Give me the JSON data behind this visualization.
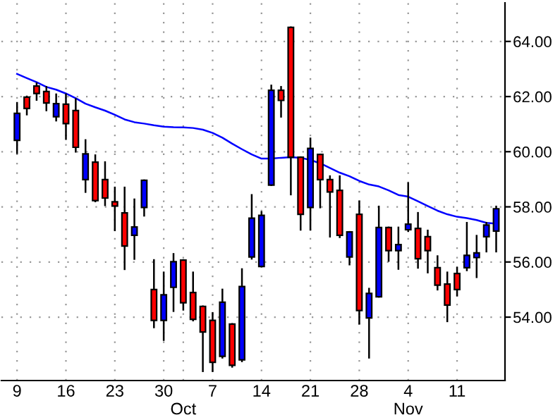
{
  "chart_data": {
    "type": "candlestick",
    "categories": [
      "9",
      null,
      null,
      null,
      null,
      "16",
      null,
      null,
      null,
      null,
      "23",
      null,
      null,
      null,
      null,
      "30",
      null,
      "\nOct",
      null,
      null,
      "7",
      null,
      null,
      null,
      null,
      "14",
      null,
      null,
      null,
      null,
      "21",
      null,
      null,
      null,
      null,
      "28",
      null,
      null,
      null,
      null,
      "4\nNov",
      null,
      null,
      null,
      null,
      "11",
      null,
      null,
      null,
      null
    ],
    "ohlc": [
      [
        60.41,
        61.77,
        59.95,
        61.39
      ],
      [
        61.98,
        62.0,
        61.35,
        61.57
      ],
      [
        62.38,
        62.48,
        61.88,
        62.11
      ],
      [
        62.18,
        62.35,
        61.5,
        61.77
      ],
      [
        61.27,
        62.08,
        61.13,
        61.74
      ],
      [
        61.72,
        62.08,
        60.46,
        61.02
      ],
      [
        61.49,
        61.91,
        60.0,
        60.16
      ],
      [
        58.99,
        60.42,
        58.54,
        59.92
      ],
      [
        59.62,
        59.87,
        58.2,
        58.23
      ],
      [
        58.99,
        59.62,
        58.06,
        58.32
      ],
      [
        58.18,
        58.7,
        57.15,
        58.03
      ],
      [
        57.78,
        58.7,
        55.74,
        56.58
      ],
      [
        56.97,
        58.27,
        56.11,
        57.27
      ],
      [
        57.98,
        58.96,
        57.68,
        58.96
      ],
      [
        55.0,
        56.07,
        53.63,
        53.88
      ],
      [
        53.88,
        55.62,
        53.17,
        54.81
      ],
      [
        55.08,
        56.29,
        54.22,
        56.01
      ],
      [
        56.07,
        56.07,
        54.27,
        54.52
      ],
      [
        54.89,
        55.62,
        53.88,
        53.92
      ],
      [
        54.39,
        54.39,
        52.04,
        53.46
      ],
      [
        53.88,
        54.15,
        52.04,
        52.36
      ],
      [
        52.58,
        55.0,
        52.53,
        54.54
      ],
      [
        53.75,
        53.75,
        52.2,
        52.25
      ],
      [
        52.45,
        55.74,
        52.4,
        55.11
      ],
      [
        56.18,
        58.43,
        56.12,
        57.59
      ],
      [
        55.84,
        57.81,
        55.84,
        57.69
      ],
      [
        58.79,
        62.4,
        58.79,
        62.23
      ],
      [
        62.23,
        62.35,
        61.27,
        61.86
      ],
      [
        64.51,
        64.51,
        58.45,
        59.8
      ],
      [
        59.8,
        59.8,
        57.17,
        57.73
      ],
      [
        57.98,
        60.48,
        57.17,
        60.12
      ],
      [
        59.9,
        59.9,
        57.98,
        58.99
      ],
      [
        58.99,
        59.11,
        56.92,
        58.54
      ],
      [
        58.6,
        59.11,
        56.9,
        56.97
      ],
      [
        56.18,
        57.09,
        55.91,
        57.09
      ],
      [
        57.73,
        58.2,
        53.76,
        54.24
      ],
      [
        53.97,
        55.03,
        52.53,
        54.86
      ],
      [
        54.74,
        58.01,
        54.74,
        57.25
      ],
      [
        57.25,
        57.25,
        56.04,
        56.41
      ],
      [
        56.41,
        57.25,
        55.75,
        56.63
      ],
      [
        57.17,
        58.86,
        57.12,
        57.37
      ],
      [
        57.22,
        57.78,
        55.79,
        56.12
      ],
      [
        56.92,
        57.14,
        55.62,
        56.41
      ],
      [
        55.79,
        56.21,
        55.0,
        55.16
      ],
      [
        55.2,
        55.62,
        53.85,
        54.44
      ],
      [
        55.58,
        55.79,
        54.78,
        55.0
      ],
      [
        55.79,
        57.42,
        55.7,
        56.24
      ],
      [
        56.16,
        56.95,
        55.45,
        56.33
      ],
      [
        56.92,
        57.42,
        56.38,
        57.34
      ],
      [
        57.12,
        58.01,
        56.38,
        57.93
      ]
    ],
    "colors": [
      "#0000ff",
      "#ff0000",
      "#ff0000",
      "#ff0000",
      "#0000ff",
      "#ff0000",
      "#ff0000",
      "#0000ff",
      "#ff0000",
      "#ff0000",
      "#ff0000",
      "#ff0000",
      "#0000ff",
      "#0000ff",
      "#ff0000",
      "#0000ff",
      "#0000ff",
      "#ff0000",
      "#ff0000",
      "#ff0000",
      "#ff0000",
      "#0000ff",
      "#ff0000",
      "#0000ff",
      "#0000ff",
      "#0000ff",
      "#0000ff",
      "#ff0000",
      "#ff0000",
      "#ff0000",
      "#0000ff",
      "#ff0000",
      "#ff0000",
      "#ff0000",
      "#0000ff",
      "#ff0000",
      "#0000ff",
      "#0000ff",
      "#ff0000",
      "#0000ff",
      "#0000ff",
      "#ff0000",
      "#ff0000",
      "#ff0000",
      "#ff0000",
      "#ff0000",
      "#0000ff",
      "#0000ff",
      "#0000ff",
      "#0000ff"
    ],
    "series": [
      {
        "type": "line",
        "color": "#0000ff",
        "values": [
          62.82,
          62.67,
          62.52,
          62.35,
          62.25,
          62.11,
          61.94,
          61.74,
          61.61,
          61.49,
          61.34,
          61.17,
          61.07,
          61.02,
          60.96,
          60.91,
          60.89,
          60.88,
          60.86,
          60.8,
          60.68,
          60.51,
          60.29,
          60.09,
          59.9,
          59.75,
          59.75,
          59.78,
          59.8,
          59.78,
          59.7,
          59.58,
          59.41,
          59.24,
          59.11,
          58.94,
          58.81,
          58.74,
          58.6,
          58.43,
          58.37,
          58.2,
          58.03,
          57.86,
          57.73,
          57.64,
          57.59,
          57.52,
          57.42,
          57.39
        ]
      }
    ],
    "ylim": [
      51.7,
      65.4
    ],
    "yticks": [
      {
        "value": 54,
        "label": "54.00"
      },
      {
        "value": 56,
        "label": "56.00"
      },
      {
        "value": 58,
        "label": "58.00"
      },
      {
        "value": 60,
        "label": "60.00"
      },
      {
        "value": 62,
        "label": "62.00"
      },
      {
        "value": 64,
        "label": "64.00"
      }
    ],
    "grid": true
  }
}
